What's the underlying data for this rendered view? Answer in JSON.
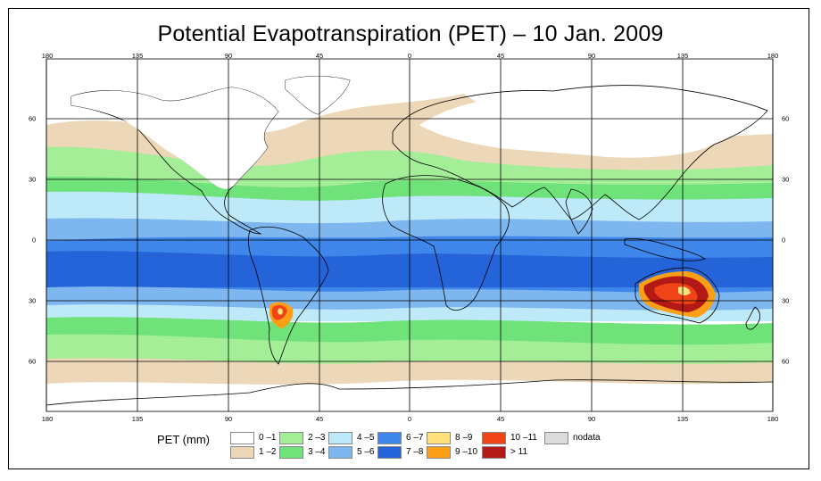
{
  "title": "Potential Evapotranspiration (PET) – 10 Jan. 2009",
  "lon_ticks": [
    "180",
    "135",
    "90",
    "45",
    "0",
    "45",
    "90",
    "135",
    "180"
  ],
  "lat_ticks": [
    "60",
    "30",
    "0",
    "30",
    "60"
  ],
  "legend": {
    "title": "PET (mm)",
    "items": [
      {
        "label": "0 –1",
        "color": "#ffffff"
      },
      {
        "label": "1 –2",
        "color": "#ecd7b8"
      },
      {
        "label": "2 –3",
        "color": "#a4ee98"
      },
      {
        "label": "3 –4",
        "color": "#6fe27a"
      },
      {
        "label": "4 –5",
        "color": "#bde9f8"
      },
      {
        "label": "5 –6",
        "color": "#7eb6f0"
      },
      {
        "label": "6 –7",
        "color": "#3e86ea"
      },
      {
        "label": "7 –8",
        "color": "#2563d8"
      },
      {
        "label": "8 –9",
        "color": "#fde07a"
      },
      {
        "label": "9 –10",
        "color": "#fb9f16"
      },
      {
        "label": "10 –11",
        "color": "#f04418"
      },
      {
        "label": "> 11",
        "color": "#b31a16"
      },
      {
        "label": "nodata",
        "color": "#dcdcdc"
      }
    ]
  }
}
